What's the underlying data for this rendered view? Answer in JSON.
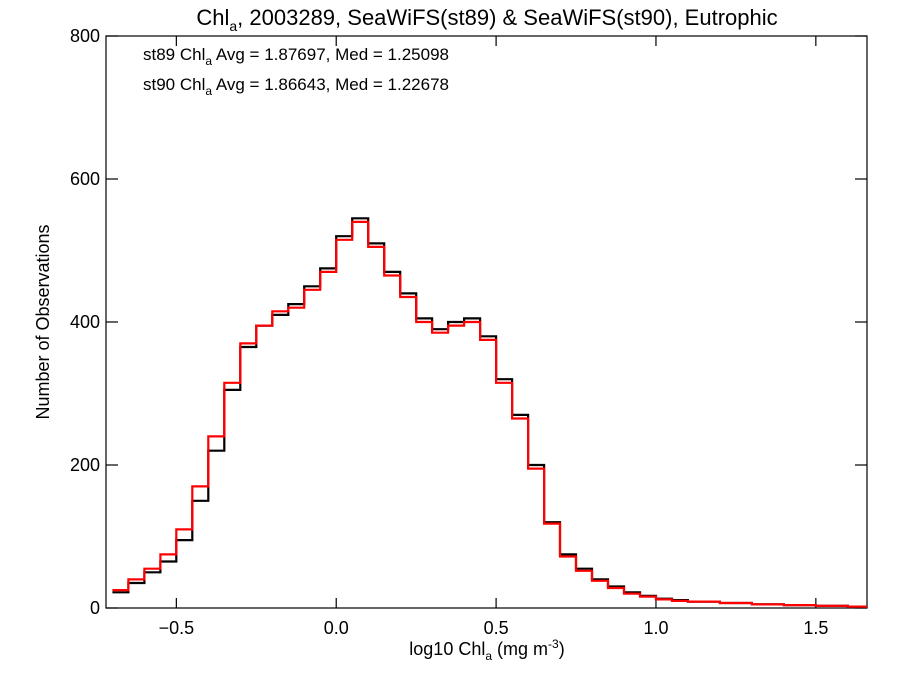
{
  "chart_data": {
    "type": "line",
    "title": {
      "main": "Chl",
      "sub": "a",
      "rest": ", 2003289, SeaWiFS(st89) & SeaWiFS(st90), Eutrophic"
    },
    "xlabel": {
      "main": "log10 Chl",
      "sub": "a",
      "rest": " (mg m",
      "sup": "-3",
      "close": ")"
    },
    "ylabel": "Number of Observations",
    "xlim": [
      -0.72,
      1.66
    ],
    "ylim": [
      0,
      800
    ],
    "x_ticks": [
      -0.5,
      0.0,
      0.5,
      1.0,
      1.5
    ],
    "x_tick_labels": [
      "−0.5",
      "0.0",
      "0.5",
      "1.0",
      "1.5"
    ],
    "y_ticks": [
      0,
      200,
      400,
      600,
      800
    ],
    "y_tick_labels": [
      "0",
      "200",
      "400",
      "600",
      "800"
    ],
    "grid": false,
    "legend_placement": "top-left",
    "annotations": [
      {
        "pre": "st89 Chl",
        "sub": "a",
        "post": " Avg = 1.87697, Med = 1.25098",
        "color": "#000000"
      },
      {
        "pre": "st90 Chl",
        "sub": "a",
        "post": " Avg = 1.86643, Med = 1.22678",
        "color": "#ff0000"
      }
    ],
    "series": [
      {
        "color": "#000000",
        "x": [
          -0.7,
          -0.65,
          -0.6,
          -0.55,
          -0.5,
          -0.45,
          -0.4,
          -0.35,
          -0.3,
          -0.25,
          -0.2,
          -0.15,
          -0.1,
          -0.05,
          0.0,
          0.05,
          0.1,
          0.15,
          0.2,
          0.25,
          0.3,
          0.35,
          0.4,
          0.45,
          0.5,
          0.55,
          0.6,
          0.65,
          0.7,
          0.75,
          0.8,
          0.85,
          0.9,
          0.95,
          1.0,
          1.05,
          1.1,
          1.2,
          1.3,
          1.4,
          1.5,
          1.6,
          1.66
        ],
        "y": [
          22,
          35,
          50,
          65,
          95,
          150,
          220,
          305,
          365,
          395,
          410,
          425,
          450,
          475,
          520,
          545,
          510,
          470,
          440,
          405,
          390,
          400,
          405,
          380,
          320,
          270,
          200,
          120,
          75,
          55,
          40,
          30,
          22,
          17,
          13,
          11,
          9,
          7,
          5,
          4,
          3,
          2,
          2
        ]
      },
      {
        "color": "#ff0000",
        "x": [
          -0.7,
          -0.65,
          -0.6,
          -0.55,
          -0.5,
          -0.45,
          -0.4,
          -0.35,
          -0.3,
          -0.25,
          -0.2,
          -0.15,
          -0.1,
          -0.05,
          0.0,
          0.05,
          0.1,
          0.15,
          0.2,
          0.25,
          0.3,
          0.35,
          0.4,
          0.45,
          0.5,
          0.55,
          0.6,
          0.65,
          0.7,
          0.75,
          0.8,
          0.85,
          0.9,
          0.95,
          1.0,
          1.05,
          1.1,
          1.2,
          1.3,
          1.4,
          1.5,
          1.6,
          1.66
        ],
        "y": [
          25,
          40,
          55,
          75,
          110,
          170,
          240,
          315,
          370,
          395,
          415,
          420,
          445,
          470,
          515,
          540,
          505,
          465,
          435,
          400,
          385,
          395,
          400,
          375,
          315,
          265,
          195,
          118,
          72,
          52,
          38,
          28,
          20,
          16,
          12,
          10,
          9,
          7,
          5,
          4,
          3,
          2,
          2
        ]
      }
    ]
  }
}
